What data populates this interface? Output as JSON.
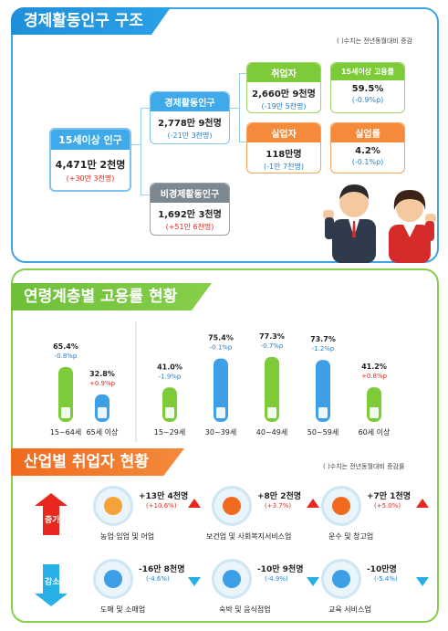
{
  "section1": {
    "title": "경제활동인구 구조",
    "note": "( )수치는 전년동월대비 증감",
    "population15": {
      "label": "15세이상 인구",
      "value": "4,471만 2천명",
      "change": "(+30만 3천명)"
    },
    "active": {
      "label": "경제활동인구",
      "value": "2,778만 9천명",
      "change": "(-21만 3천명)"
    },
    "inactive": {
      "label": "비경제활동인구",
      "value": "1,692만 3천명",
      "change": "(+51만 6천명)"
    },
    "employed": {
      "label": "취업자",
      "value": "2,660만 9천명",
      "change": "(-19만 5천명)"
    },
    "employment_rate": {
      "label": "15세이상 고용률",
      "value": "59.5%",
      "change": "(-0.9%p)"
    },
    "unemployed": {
      "label": "실업자",
      "value": "118만명",
      "change": "(-1만 7천명)"
    },
    "unemployment_rate": {
      "label": "실업률",
      "value": "4.2%",
      "change": "(-0.1%p)"
    }
  },
  "section2": {
    "title": "연령계층별 고용률 현황"
  },
  "chart_data": {
    "type": "bar",
    "categories": [
      "15~64세",
      "65세 이상",
      "15~29세",
      "30~39세",
      "40~49세",
      "50~59세",
      "60세 이상"
    ],
    "values": [
      65.4,
      32.8,
      41.0,
      75.4,
      77.3,
      73.7,
      41.2
    ],
    "value_labels": [
      "65.4%",
      "32.8%",
      "41.0%",
      "75.4%",
      "77.3%",
      "73.7%",
      "41.2%"
    ],
    "changes": [
      "-0.8%p",
      "+0.9%p",
      "-1.9%p",
      "-0.1%p",
      "-0.7%p",
      "-1.2%p",
      "+0.8%p"
    ],
    "colors": [
      "#7ecb3a",
      "#3d9fe5",
      "#7ecb3a",
      "#3d9fe5",
      "#7ecb3a",
      "#3d9fe5",
      "#7ecb3a"
    ],
    "ylim": [
      0,
      100
    ]
  },
  "section3": {
    "title": "산업별 취업자 현황",
    "note": "( )수치는 전년동월대비 증감률",
    "increase_label": "증가",
    "decrease_label": "감소",
    "increase": [
      {
        "name": "농업·임업 및 어업",
        "value": "+13만 4천명",
        "change": "(+10.6%)",
        "icon": "wheat-icon"
      },
      {
        "name": "보건업 및 사회복지서비스업",
        "value": "+8만 2천명",
        "change": "(+3.7%)",
        "icon": "first-aid-icon"
      },
      {
        "name": "운수 및 창고업",
        "value": "+7만 1천명",
        "change": "(+5.0%)",
        "icon": "truck-icon"
      }
    ],
    "decrease": [
      {
        "name": "도매 및 소매업",
        "value": "-16만 8천명",
        "change": "(-4.6%)",
        "icon": "basket-icon"
      },
      {
        "name": "숙박 및 음식점업",
        "value": "-10만 9천명",
        "change": "(-4.9%)",
        "icon": "dining-icon"
      },
      {
        "name": "교육 서비스업",
        "value": "-10만명",
        "change": "(-5.4%)",
        "icon": "graduation-cap-icon"
      }
    ]
  },
  "colors": {
    "blue": "#3d9fe5",
    "green": "#7ecb3a",
    "orange": "#f58a3a",
    "red": "#e8281e",
    "grey": "#7d8790"
  }
}
